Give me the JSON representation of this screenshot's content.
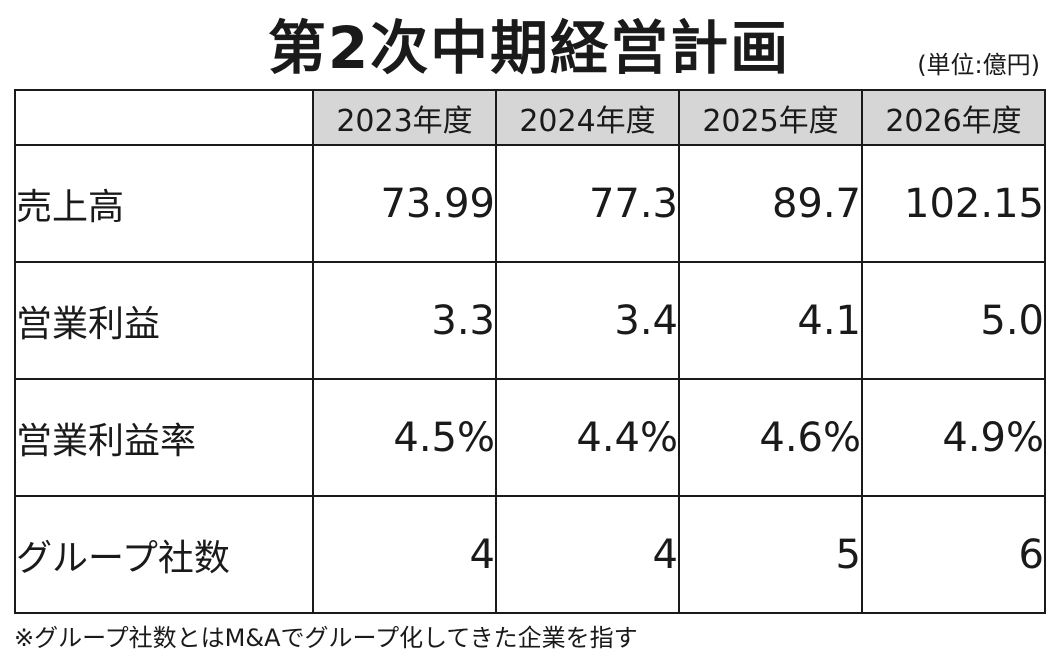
{
  "title": "第2次中期経営計画",
  "unit": "(単位:億円)",
  "table": {
    "years": [
      "2023年度",
      "2024年度",
      "2025年度",
      "2026年度"
    ],
    "rows": [
      {
        "label": "売上高",
        "values": [
          "73.99",
          "77.3",
          "89.7",
          "102.15"
        ]
      },
      {
        "label": "営業利益",
        "values": [
          "3.3",
          "3.4",
          "4.1",
          "5.0"
        ]
      },
      {
        "label": "営業利益率",
        "values": [
          "4.5%",
          "4.4%",
          "4.6%",
          "4.9%"
        ]
      },
      {
        "label": "グループ社数",
        "values": [
          "4",
          "4",
          "5",
          "6"
        ]
      }
    ]
  },
  "note": "※グループ社数とはM&Aでグループ化してきた企業を指す",
  "colors": {
    "header_bg": "#d6d6d6",
    "border": "#1a1a1a",
    "text": "#1a1a1a"
  }
}
